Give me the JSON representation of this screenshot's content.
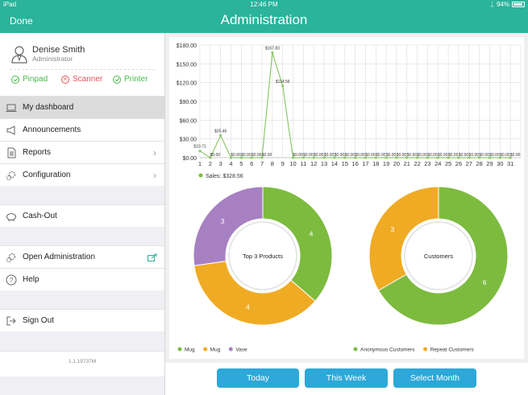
{
  "status": {
    "device": "iPad",
    "time": "12:46 PM",
    "battery": "94%"
  },
  "header": {
    "done_label": "Done",
    "title": "Administration"
  },
  "profile": {
    "name": "Denise Smith",
    "role": "Administrator"
  },
  "devices": [
    {
      "label": "Pinpad",
      "state": "ok"
    },
    {
      "label": "Scanner",
      "state": "error"
    },
    {
      "label": "Printer",
      "state": "ok"
    }
  ],
  "menu": {
    "dashboard": "My dashboard",
    "announcements": "Announcements",
    "reports": "Reports",
    "configuration": "Configuration",
    "cashout": "Cash-Out",
    "open_admin": "Open Administration",
    "help": "Help",
    "signout": "Sign Out"
  },
  "version": "1.1.19737M",
  "buttons": {
    "today": "Today",
    "this_week": "This Week",
    "select_month": "Select Month"
  },
  "colors": {
    "header": "#2bb39b",
    "button": "#2da8d8",
    "green": "#7dbb3f",
    "orange": "#f0ab24",
    "purple": "#a780c2",
    "line": "#8dc96b"
  },
  "chart_data": [
    {
      "type": "line",
      "x": [
        1,
        2,
        3,
        4,
        5,
        6,
        7,
        8,
        9,
        10,
        11,
        12,
        13,
        14,
        15,
        16,
        17,
        18,
        19,
        20,
        21,
        22,
        23,
        24,
        25,
        26,
        27,
        28,
        29,
        30,
        31
      ],
      "series": [
        {
          "name": "Sales: $328.56",
          "values": [
            10.71,
            0,
            35.46,
            0,
            0,
            0,
            0,
            167.83,
            114.56,
            0,
            0,
            0,
            0,
            0,
            0,
            0,
            0,
            0,
            0,
            0,
            0,
            0,
            0,
            0,
            0,
            0,
            0,
            0,
            0,
            0,
            0
          ],
          "labels": [
            "$10.71",
            "$0.00",
            "$35.46",
            "$0.00",
            "$0.00",
            "$0.00",
            "$0.00",
            "$167.83",
            "$114.56",
            "$0.00",
            "$0.00",
            "$0.00",
            "$0.00",
            "$0.00",
            "$0.00",
            "$0.00",
            "$0.00",
            "$0.00",
            "$0.00",
            "$0.00",
            "$0.00",
            "$0.00",
            "$0.00",
            "$0.00",
            "$0.00",
            "$0.00",
            "$0.00",
            "$0.00",
            "$0.00",
            "$0.00",
            "$0.00"
          ]
        }
      ],
      "y_ticks": [
        "$0.00",
        "$30.00",
        "$60.00",
        "$90.00",
        "$120.00",
        "$150.00",
        "$180.00"
      ],
      "ylim": [
        0,
        180
      ],
      "grid": true,
      "legend": "bottom-left"
    },
    {
      "type": "pie",
      "center_label": "Top 3 Products",
      "slices": [
        {
          "name": "Mug",
          "value": 4,
          "color": "#7dbb3f"
        },
        {
          "name": "Mug",
          "value": 4,
          "color": "#f0ab24"
        },
        {
          "name": "Vase",
          "value": 3,
          "color": "#a780c2"
        }
      ],
      "legend": "bottom-left"
    },
    {
      "type": "pie",
      "center_label": "Customers",
      "slices": [
        {
          "name": "Anonymous Customers",
          "value": 6,
          "color": "#7dbb3f"
        },
        {
          "name": "Repeat Customers",
          "value": 3,
          "color": "#f0ab24"
        }
      ],
      "legend": "bottom-left"
    }
  ]
}
